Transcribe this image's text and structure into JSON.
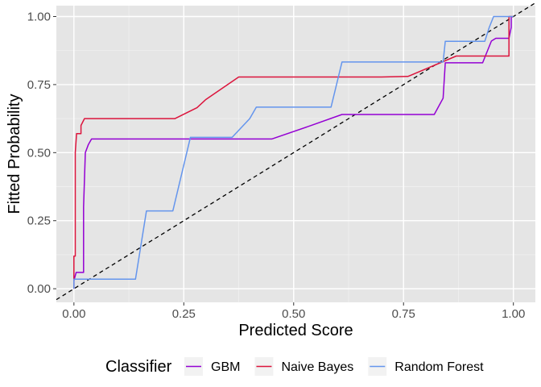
{
  "chart_data": {
    "type": "line",
    "xlabel": "Predicted Score",
    "ylabel": "Fitted Probability",
    "xlim": [
      -0.04,
      1.05
    ],
    "ylim": [
      -0.05,
      1.04
    ],
    "x_ticks": [
      0.0,
      0.25,
      0.5,
      0.75,
      1.0
    ],
    "y_ticks": [
      0.0,
      0.25,
      0.5,
      0.75,
      1.0
    ],
    "x_tick_labels": [
      "0.00",
      "0.25",
      "0.50",
      "0.75",
      "1.00"
    ],
    "y_tick_labels": [
      "0.00",
      "0.25",
      "0.50",
      "0.75",
      "1.00"
    ],
    "grid": true,
    "background": "#e5e5e5",
    "legend": {
      "title": "Classifier",
      "position": "bottom"
    },
    "reference_line": {
      "x": [
        -0.04,
        1.05
      ],
      "y": [
        -0.04,
        1.05
      ],
      "style": "dashed",
      "color": "#000000"
    },
    "series": [
      {
        "name": "GBM",
        "color": "#9400d3",
        "x": [
          0.0,
          0.0,
          0.005,
          0.022,
          0.022,
          0.026,
          0.033,
          0.04,
          0.45,
          0.54,
          0.61,
          0.82,
          0.84,
          0.845,
          0.93,
          0.95,
          0.96,
          0.99,
          0.995,
          0.995
        ],
        "y": [
          0.0,
          0.03,
          0.06,
          0.06,
          0.3,
          0.5,
          0.53,
          0.55,
          0.55,
          0.6,
          0.64,
          0.64,
          0.7,
          0.83,
          0.83,
          0.91,
          0.92,
          0.92,
          0.96,
          1.0
        ]
      },
      {
        "name": "Naive Bayes",
        "color": "#dc143c",
        "x": [
          0.0,
          0.0,
          0.003,
          0.003,
          0.006,
          0.01,
          0.016,
          0.016,
          0.024,
          0.23,
          0.28,
          0.3,
          0.375,
          0.7,
          0.76,
          0.87,
          0.99,
          0.99,
          1.0
        ],
        "y": [
          0.0,
          0.12,
          0.12,
          0.5,
          0.57,
          0.57,
          0.57,
          0.6,
          0.625,
          0.625,
          0.665,
          0.695,
          0.778,
          0.778,
          0.78,
          0.855,
          0.855,
          1.0,
          1.0
        ]
      },
      {
        "name": "Random Forest",
        "color": "#6495ed",
        "x": [
          0.0,
          0.0,
          0.14,
          0.165,
          0.225,
          0.265,
          0.36,
          0.4,
          0.415,
          0.585,
          0.61,
          0.84,
          0.845,
          0.935,
          0.945,
          0.955,
          0.97,
          0.99,
          1.0
        ],
        "y": [
          0.0,
          0.035,
          0.035,
          0.286,
          0.286,
          0.556,
          0.556,
          0.625,
          0.667,
          0.667,
          0.833,
          0.833,
          0.909,
          0.909,
          0.96,
          1.0,
          1.0,
          1.0,
          1.0
        ]
      }
    ]
  }
}
